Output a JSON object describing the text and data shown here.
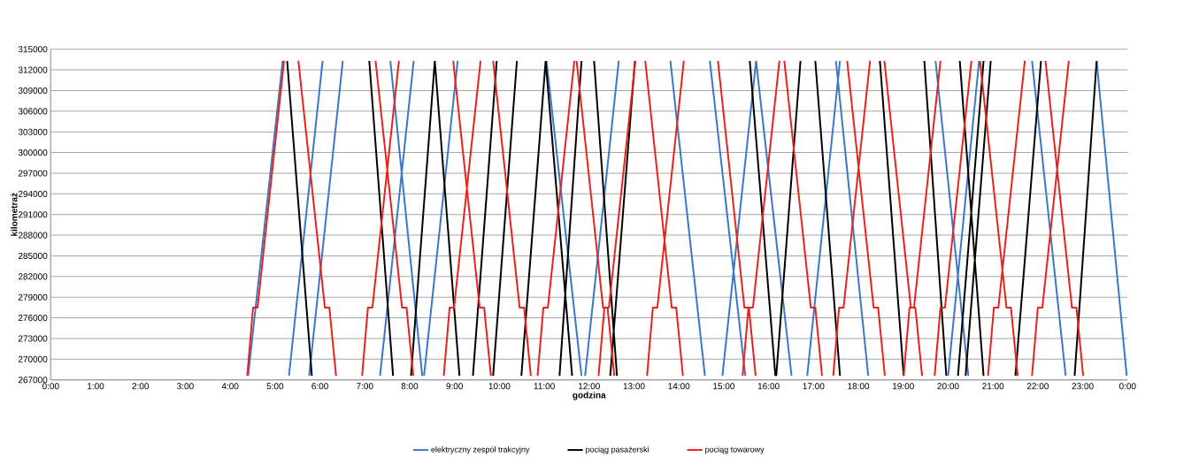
{
  "chart_data": {
    "type": "line",
    "xlabel": "godzina",
    "ylabel": "kilometraż",
    "xlim": [
      0,
      24
    ],
    "xticks": [
      {
        "value": 0,
        "label": "0:00"
      },
      {
        "value": 1,
        "label": "1:00"
      },
      {
        "value": 2,
        "label": "2:00"
      },
      {
        "value": 3,
        "label": "3:00"
      },
      {
        "value": 4,
        "label": "4:00"
      },
      {
        "value": 5,
        "label": "5:00"
      },
      {
        "value": 6,
        "label": "6:00"
      },
      {
        "value": 7,
        "label": "7:00"
      },
      {
        "value": 8,
        "label": "8:00"
      },
      {
        "value": 9,
        "label": "9:00"
      },
      {
        "value": 10,
        "label": "10:00"
      },
      {
        "value": 11,
        "label": "11:00"
      },
      {
        "value": 12,
        "label": "12:00"
      },
      {
        "value": 13,
        "label": "13:00"
      },
      {
        "value": 14,
        "label": "14:00"
      },
      {
        "value": 15,
        "label": "15:00"
      },
      {
        "value": 16,
        "label": "16:00"
      },
      {
        "value": 17,
        "label": "17:00"
      },
      {
        "value": 18,
        "label": "18:00"
      },
      {
        "value": 19,
        "label": "19:00"
      },
      {
        "value": 20,
        "label": "20:00"
      },
      {
        "value": 21,
        "label": "21:00"
      },
      {
        "value": 22,
        "label": "22:00"
      },
      {
        "value": 23,
        "label": "23:00"
      },
      {
        "value": 24,
        "label": "0:00"
      }
    ],
    "ylim": [
      267000,
      315000
    ],
    "yticks": [
      267000,
      270000,
      273000,
      276000,
      279000,
      282000,
      285000,
      288000,
      291000,
      294000,
      297000,
      300000,
      303000,
      306000,
      309000,
      312000,
      315000
    ],
    "grid": "y",
    "legend": "bottom",
    "marker": "none",
    "line_style": "solid",
    "series": [
      {
        "name": "elektryczny zespół trakcyjny",
        "color": "#3c78c3",
        "x": [
          4.4,
          5.17,
          null,
          5.31,
          6.06,
          null,
          5.76,
          6.51,
          null,
          7.34,
          8.09,
          null,
          7.57,
          8.28,
          null,
          8.32,
          9.07,
          null,
          11.05,
          11.83,
          null,
          11.91,
          12.66,
          null,
          13.81,
          14.58,
          null,
          14.69,
          15.48,
          null,
          14.97,
          15.72,
          null,
          15.72,
          16.51,
          null,
          16.86,
          17.59,
          null,
          17.5,
          18.22,
          null,
          19.72,
          20.45,
          null,
          20.0,
          20.69,
          null,
          21.87,
          22.62,
          null,
          23.31,
          23.98
        ],
        "values": [
          267600,
          313300,
          null,
          267600,
          313300,
          null,
          267600,
          313300,
          null,
          267600,
          313300,
          null,
          313300,
          267600,
          null,
          267600,
          313300,
          null,
          313300,
          267600,
          null,
          267600,
          313300,
          null,
          313300,
          267600,
          null,
          313300,
          267600,
          null,
          267600,
          313300,
          null,
          313300,
          267600,
          null,
          267600,
          313300,
          null,
          313300,
          267600,
          null,
          313300,
          267600,
          null,
          267600,
          313300,
          null,
          313300,
          267600,
          null,
          313300,
          267600
        ]
      },
      {
        "name": "pociąg pasażerski",
        "color": "#000000",
        "x": [
          5.27,
          5.82,
          null,
          7.1,
          7.63,
          null,
          8.03,
          8.56,
          null,
          8.56,
          9.11,
          null,
          9.41,
          9.94,
          null,
          9.86,
          10.39,
          null,
          10.49,
          11.03,
          null,
          11.03,
          11.62,
          null,
          11.34,
          11.83,
          null,
          12.11,
          12.62,
          null,
          12.47,
          13.02,
          null,
          15.58,
          16.15,
          null,
          16.17,
          16.71,
          null,
          17.04,
          17.59,
          null,
          18.48,
          19.01,
          null,
          19.47,
          19.96,
          null,
          20.26,
          20.79,
          null,
          20.22,
          20.79,
          null,
          20.39,
          20.95,
          null,
          21.5,
          22.07,
          null,
          22.82,
          23.31
        ],
        "values": [
          313300,
          267600,
          null,
          313300,
          267600,
          null,
          267600,
          313300,
          null,
          313300,
          267600,
          null,
          267600,
          313300,
          null,
          267600,
          313300,
          null,
          267600,
          313300,
          null,
          313300,
          267600,
          null,
          267600,
          313300,
          null,
          313300,
          267600,
          null,
          267600,
          313300,
          null,
          313300,
          267600,
          null,
          267600,
          313300,
          null,
          313300,
          267600,
          null,
          313300,
          267600,
          null,
          313300,
          267600,
          null,
          313300,
          267600,
          null,
          267600,
          313300,
          null,
          267600,
          313300,
          null,
          267600,
          313300,
          null,
          267600,
          313300
        ]
      },
      {
        "name": "pociąg towarowy",
        "color": "#e8231f",
        "x": [
          4.38,
          4.51,
          4.61,
          5.2,
          null,
          5.52,
          6.11,
          6.21,
          6.36,
          null,
          6.94,
          7.07,
          7.17,
          7.76,
          null,
          7.24,
          7.83,
          7.93,
          8.08,
          null,
          8.76,
          8.89,
          8.99,
          9.58,
          null,
          8.97,
          9.56,
          9.66,
          9.81,
          null,
          9.86,
          10.45,
          10.55,
          10.7,
          null,
          10.85,
          10.98,
          11.08,
          11.67,
          null,
          11.72,
          12.31,
          12.41,
          12.56,
          null,
          12.21,
          12.34,
          12.44,
          13.03,
          null,
          13.25,
          13.84,
          13.94,
          14.09,
          null,
          13.29,
          13.42,
          13.52,
          14.11,
          null,
          14.87,
          15.46,
          15.56,
          15.71,
          null,
          15.42,
          15.55,
          15.65,
          16.24,
          null,
          16.35,
          16.94,
          17.04,
          17.19,
          null,
          17.44,
          17.57,
          17.67,
          18.26,
          null,
          17.75,
          18.34,
          18.44,
          18.59,
          null,
          18.58,
          19.17,
          19.27,
          19.42,
          null,
          19.01,
          19.14,
          19.24,
          19.83,
          null,
          19.7,
          19.83,
          19.93,
          20.52,
          null,
          20.71,
          21.3,
          21.4,
          21.55,
          null,
          20.89,
          21.02,
          21.12,
          21.71,
          null,
          21.87,
          22.0,
          22.1,
          22.69,
          null,
          22.17,
          22.76,
          22.86,
          23.01
        ],
        "values": [
          267600,
          277500,
          277500,
          313300,
          null,
          313300,
          277500,
          277500,
          267600,
          null,
          267600,
          277500,
          277500,
          313300,
          null,
          313300,
          277500,
          277500,
          267600,
          null,
          267600,
          277500,
          277500,
          313300,
          null,
          313300,
          277500,
          277500,
          267600,
          null,
          313300,
          277500,
          277500,
          267600,
          null,
          267600,
          277500,
          277500,
          313300,
          null,
          313300,
          277500,
          277500,
          267600,
          null,
          267600,
          277500,
          277500,
          313300,
          null,
          313300,
          277500,
          277500,
          267600,
          null,
          267600,
          277500,
          277500,
          313300,
          null,
          313300,
          277500,
          277500,
          267600,
          null,
          267600,
          277500,
          277500,
          313300,
          null,
          313300,
          277500,
          277500,
          267600,
          null,
          267600,
          277500,
          277500,
          313300,
          null,
          313300,
          277500,
          277500,
          267600,
          null,
          313300,
          277500,
          277500,
          267600,
          null,
          267600,
          277500,
          277500,
          313300,
          null,
          267600,
          277500,
          277500,
          313300,
          null,
          313300,
          277500,
          277500,
          267600,
          null,
          267600,
          277500,
          277500,
          313300,
          null,
          267600,
          277500,
          277500,
          313300,
          null,
          313300,
          277500,
          277500,
          267600
        ]
      }
    ]
  }
}
